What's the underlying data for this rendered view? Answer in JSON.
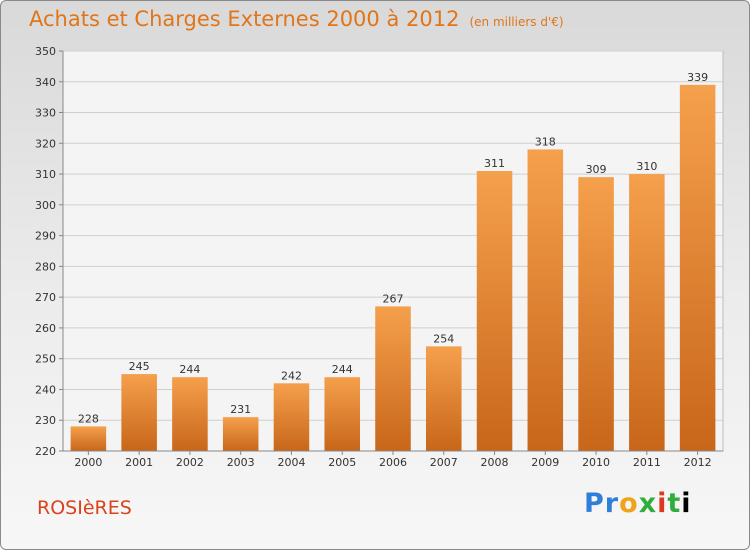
{
  "header": {
    "title": "Achats et Charges Externes 2000 à 2012",
    "subtitle": "(en milliers d'€)"
  },
  "footer": {
    "city": "ROSIèRES",
    "logo": [
      "P",
      "r",
      "o",
      "x",
      "i",
      "t",
      "i"
    ]
  },
  "colors": {
    "bar": "#f5a04c",
    "bar_dark": "#c8661a",
    "title": "#e0751a",
    "city": "#d9431c"
  },
  "chart_data": {
    "type": "bar",
    "title": "Achats et Charges Externes 2000 à 2012",
    "subtitle": "(en milliers d'€)",
    "categories": [
      "2000",
      "2001",
      "2002",
      "2003",
      "2004",
      "2005",
      "2006",
      "2007",
      "2008",
      "2009",
      "2010",
      "2011",
      "2012"
    ],
    "values": [
      228,
      245,
      244,
      231,
      242,
      244,
      267,
      254,
      311,
      318,
      309,
      310,
      339
    ],
    "ylim": [
      220,
      350
    ],
    "yticks": [
      220,
      230,
      240,
      250,
      260,
      270,
      280,
      290,
      300,
      310,
      320,
      330,
      340,
      350
    ],
    "grid": true,
    "xlabel": "",
    "ylabel": ""
  }
}
